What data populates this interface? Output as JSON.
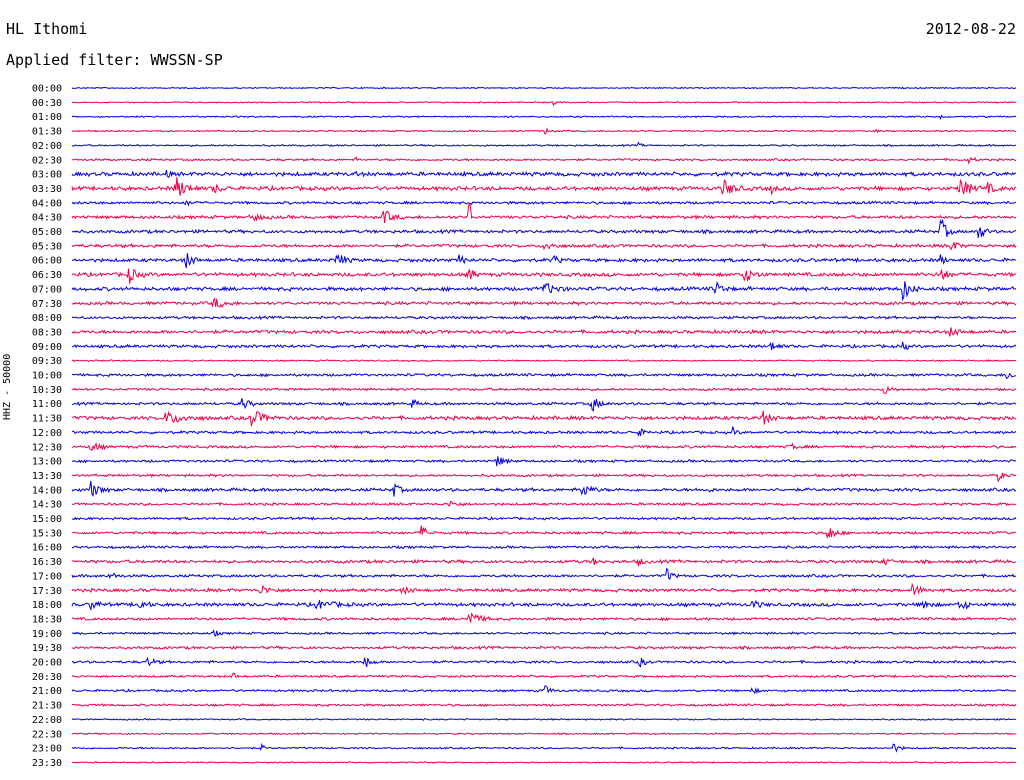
{
  "header": {
    "station": "HL Ithomi",
    "date": "2012-08-22",
    "filter": "Applied filter: WWSSN-SP"
  },
  "chart_data": {
    "type": "line",
    "title": "HL Ithomi",
    "subtitle": "Applied filter: WWSSN-SP",
    "ylabel": "HHZ - 50000",
    "xlabel": "",
    "colors": [
      "#0000dd",
      "#ee0044"
    ],
    "grid": false,
    "legend": "none",
    "rows": [
      {
        "label": "00:00",
        "noise": 0.5,
        "events": []
      },
      {
        "label": "00:30",
        "noise": 0.5,
        "events": [
          [
            0.51,
            3,
            0.8
          ]
        ]
      },
      {
        "label": "01:00",
        "noise": 0.6,
        "events": [
          [
            0.92,
            2,
            0.8
          ]
        ]
      },
      {
        "label": "01:30",
        "noise": 0.6,
        "events": [
          [
            0.5,
            5,
            1.2
          ],
          [
            0.85,
            2,
            0.8
          ]
        ]
      },
      {
        "label": "02:00",
        "noise": 0.7,
        "events": [
          [
            0.6,
            3,
            0.8
          ]
        ]
      },
      {
        "label": "02:30",
        "noise": 0.9,
        "events": [
          [
            0.3,
            2,
            0.8
          ],
          [
            0.95,
            4,
            1.0
          ]
        ]
      },
      {
        "label": "03:00",
        "noise": 1.6,
        "events": [
          [
            0.1,
            3,
            1.2
          ],
          [
            0.3,
            3,
            1.0
          ]
        ]
      },
      {
        "label": "03:30",
        "noise": 1.6,
        "events": [
          [
            0.11,
            8,
            4.0
          ],
          [
            0.15,
            6,
            1.5
          ],
          [
            0.69,
            8,
            3.0
          ],
          [
            0.74,
            4,
            1.5
          ],
          [
            0.94,
            8,
            4.0
          ],
          [
            0.97,
            6,
            1.5
          ]
        ]
      },
      {
        "label": "04:00",
        "noise": 1.1,
        "events": [
          [
            0.12,
            4,
            1.2
          ]
        ]
      },
      {
        "label": "04:30",
        "noise": 1.3,
        "events": [
          [
            0.19,
            8,
            1.5
          ],
          [
            0.33,
            7,
            2.5
          ],
          [
            0.42,
            2,
            9.0
          ]
        ]
      },
      {
        "label": "05:00",
        "noise": 1.3,
        "events": [
          [
            0.92,
            5,
            5.0
          ],
          [
            0.96,
            5,
            3.0
          ]
        ]
      },
      {
        "label": "05:30",
        "noise": 1.3,
        "events": [
          [
            0.5,
            7,
            1.5
          ],
          [
            0.93,
            6,
            2.0
          ]
        ]
      },
      {
        "label": "06:00",
        "noise": 1.4,
        "events": [
          [
            0.12,
            6,
            3.0
          ],
          [
            0.28,
            6,
            3.0
          ],
          [
            0.41,
            5,
            1.5
          ],
          [
            0.51,
            4,
            1.5
          ],
          [
            0.92,
            4,
            1.5
          ]
        ]
      },
      {
        "label": "06:30",
        "noise": 1.5,
        "events": [
          [
            0.06,
            6,
            3.0
          ],
          [
            0.42,
            4,
            3.0
          ],
          [
            0.71,
            8,
            3.0
          ],
          [
            0.92,
            5,
            3.0
          ]
        ]
      },
      {
        "label": "07:00",
        "noise": 1.5,
        "events": [
          [
            0.5,
            10,
            2.0
          ],
          [
            0.68,
            6,
            3.0
          ],
          [
            0.88,
            6,
            4.0
          ]
        ]
      },
      {
        "label": "07:30",
        "noise": 1.3,
        "events": [
          [
            0.15,
            8,
            2.0
          ]
        ]
      },
      {
        "label": "08:00",
        "noise": 1.1,
        "events": []
      },
      {
        "label": "08:30",
        "noise": 1.4,
        "events": [
          [
            0.93,
            8,
            1.3
          ]
        ]
      },
      {
        "label": "09:00",
        "noise": 1.2,
        "events": [
          [
            0.74,
            5,
            2.0
          ],
          [
            0.88,
            3,
            2.0
          ]
        ]
      },
      {
        "label": "09:30",
        "noise": 0.6,
        "events": []
      },
      {
        "label": "10:00",
        "noise": 1.1,
        "events": [
          [
            0.99,
            6,
            1.5
          ]
        ]
      },
      {
        "label": "10:30",
        "noise": 1.0,
        "events": [
          [
            0.86,
            6,
            1.5
          ]
        ]
      },
      {
        "label": "11:00",
        "noise": 1.1,
        "events": [
          [
            0.18,
            6,
            2.0
          ],
          [
            0.36,
            4,
            1.5
          ],
          [
            0.55,
            6,
            3.0
          ]
        ]
      },
      {
        "label": "11:30",
        "noise": 1.5,
        "events": [
          [
            0.1,
            14,
            2.0
          ],
          [
            0.19,
            10,
            3.0
          ],
          [
            0.73,
            6,
            3.0
          ]
        ]
      },
      {
        "label": "12:00",
        "noise": 1.1,
        "events": [
          [
            0.6,
            4,
            1.5
          ],
          [
            0.7,
            3,
            1.5
          ]
        ]
      },
      {
        "label": "12:30",
        "noise": 1.1,
        "events": [
          [
            0.02,
            6,
            2.0
          ],
          [
            0.76,
            5,
            1.5
          ]
        ]
      },
      {
        "label": "13:00",
        "noise": 1.0,
        "events": [
          [
            0.45,
            6,
            2.0
          ]
        ]
      },
      {
        "label": "13:30",
        "noise": 1.0,
        "events": [
          [
            0.98,
            5,
            2.0
          ]
        ]
      },
      {
        "label": "14:00",
        "noise": 1.3,
        "events": [
          [
            0.02,
            6,
            3.0
          ],
          [
            0.34,
            5,
            2.5
          ],
          [
            0.54,
            7,
            2.5
          ],
          [
            0.67,
            4,
            1.5
          ]
        ]
      },
      {
        "label": "14:30",
        "noise": 1.0,
        "events": [
          [
            0.4,
            6,
            1.2
          ]
        ]
      },
      {
        "label": "15:00",
        "noise": 1.0,
        "events": []
      },
      {
        "label": "15:30",
        "noise": 1.1,
        "events": [
          [
            0.37,
            5,
            2.5
          ],
          [
            0.8,
            6,
            3.0
          ]
        ]
      },
      {
        "label": "16:00",
        "noise": 1.0,
        "events": []
      },
      {
        "label": "16:30",
        "noise": 1.3,
        "events": [
          [
            0.55,
            4,
            1.5
          ],
          [
            0.6,
            4,
            1.5
          ],
          [
            0.86,
            4,
            1.5
          ]
        ]
      },
      {
        "label": "17:00",
        "noise": 1.1,
        "events": [
          [
            0.04,
            5,
            1.5
          ],
          [
            0.63,
            4,
            2.5
          ]
        ]
      },
      {
        "label": "17:30",
        "noise": 1.3,
        "events": [
          [
            0.2,
            8,
            1.5
          ],
          [
            0.35,
            6,
            1.5
          ],
          [
            0.89,
            8,
            1.8
          ]
        ]
      },
      {
        "label": "18:00",
        "noise": 1.4,
        "events": [
          [
            0.02,
            5,
            2.0
          ],
          [
            0.07,
            6,
            2.0
          ],
          [
            0.26,
            14,
            1.3
          ],
          [
            0.72,
            6,
            1.5
          ],
          [
            0.9,
            5,
            3.0
          ],
          [
            0.94,
            5,
            3.0
          ]
        ]
      },
      {
        "label": "18:30",
        "noise": 1.1,
        "events": [
          [
            0.42,
            8,
            3.0
          ]
        ]
      },
      {
        "label": "19:00",
        "noise": 0.9,
        "events": [
          [
            0.15,
            3,
            1.5
          ]
        ]
      },
      {
        "label": "19:30",
        "noise": 1.1,
        "events": []
      },
      {
        "label": "20:00",
        "noise": 1.0,
        "events": [
          [
            0.08,
            6,
            1.5
          ],
          [
            0.31,
            5,
            2.5
          ],
          [
            0.6,
            5,
            2.0
          ]
        ]
      },
      {
        "label": "20:30",
        "noise": 0.9,
        "events": [
          [
            0.17,
            3,
            1.5
          ]
        ]
      },
      {
        "label": "21:00",
        "noise": 0.9,
        "events": [
          [
            0.5,
            5,
            2.0
          ],
          [
            0.72,
            4,
            1.2
          ]
        ]
      },
      {
        "label": "21:30",
        "noise": 0.9,
        "events": []
      },
      {
        "label": "22:00",
        "noise": 0.6,
        "events": []
      },
      {
        "label": "22:30",
        "noise": 0.6,
        "events": []
      },
      {
        "label": "23:00",
        "noise": 0.7,
        "events": [
          [
            0.2,
            3,
            1.3
          ],
          [
            0.87,
            5,
            1.5
          ]
        ]
      },
      {
        "label": "23:30",
        "noise": 0.5,
        "events": []
      }
    ]
  }
}
